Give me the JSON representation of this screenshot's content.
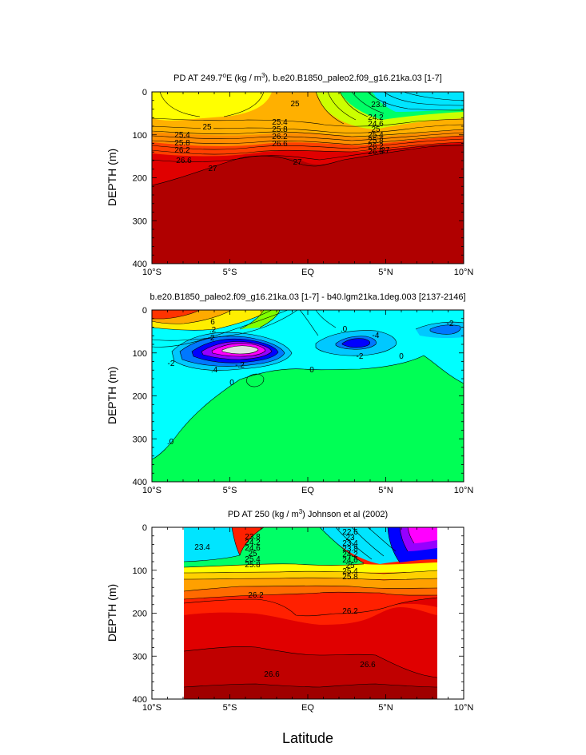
{
  "figure": {
    "xlabel": "Latitude"
  },
  "chart_data": [
    {
      "type": "heatmap",
      "title_parts": {
        "main": "PD AT 249.7",
        "sup": "o",
        "mid": "E (kg / m",
        "sup2": "3",
        "end": "), b.e20.B1850_paleo2.f09_g16.21ka.03 [1-7]"
      },
      "xlabel": "",
      "ylabel": "DEPTH (m)",
      "x_ticks": [
        "10°S",
        "5°S",
        "EQ",
        "5°N",
        "10°N"
      ],
      "x_values": [
        -10,
        -5,
        0,
        5,
        10
      ],
      "xlim": [
        -10,
        10
      ],
      "y_ticks": [
        "0",
        "100",
        "200",
        "300",
        "400"
      ],
      "ylim": [
        0,
        400
      ],
      "y_inverted": true,
      "contour_labels": [
        "25",
        "25",
        "25.4",
        "25.8",
        "26.2",
        "26.6",
        "27",
        "25.4",
        "25.8",
        "26.2",
        "26.6",
        "27",
        "23.8",
        "24.2",
        "24.6",
        "25",
        "25.4",
        "25.8",
        "26.2",
        "26.6",
        "27"
      ],
      "colors": [
        "#00e5ff",
        "#00ff66",
        "#aaff00",
        "#ffff00",
        "#ffd000",
        "#ffa000",
        "#ff6a00",
        "#ff2000",
        "#e00000",
        "#b00000"
      ]
    },
    {
      "type": "heatmap",
      "title": "b.e20.B1850_paleo2.f09_g16.21ka.03 [1-7] - b40.lgm21ka.1deg.003 [2137-2146]",
      "xlabel": "",
      "ylabel": "DEPTH (m)",
      "x_ticks": [
        "10°S",
        "5°S",
        "EQ",
        "5°N",
        "10°N"
      ],
      "x_values": [
        -10,
        -5,
        0,
        5,
        10
      ],
      "xlim": [
        -10,
        10
      ],
      "y_ticks": [
        "0",
        "100",
        "200",
        "300",
        "400"
      ],
      "ylim": [
        0,
        400
      ],
      "y_inverted": true,
      "contour_labels": [
        "6",
        ".2",
        "-2",
        ".4",
        "-.2",
        "-2",
        "0",
        "0",
        ".0",
        "-4",
        "-2",
        "0",
        "-2",
        "0",
        ".0"
      ],
      "colors": [
        "#00ff55",
        "#00ffff",
        "#00c8ff",
        "#0078ff",
        "#0000ff",
        "#9600ff",
        "#ff00ff",
        "#e0e0e0",
        "#ff3300",
        "#ffaa00",
        "#ffee00"
      ]
    },
    {
      "type": "heatmap",
      "title_parts": {
        "main": "PD AT 250 (kg / m",
        "sup": "3",
        "end": ") Johnson et al (2002)"
      },
      "xlabel": "",
      "ylabel": "DEPTH (m)",
      "x_ticks": [
        "10°S",
        "5°S",
        "EQ",
        "5°N",
        "10°N"
      ],
      "x_values": [
        -10,
        -5,
        0,
        5,
        10
      ],
      "xlim": [
        -10,
        10
      ],
      "data_xlim": [
        -8,
        8.2
      ],
      "y_ticks": [
        "0",
        "100",
        "200",
        "300",
        "400"
      ],
      "ylim": [
        0,
        400
      ],
      "y_inverted": true,
      "contour_labels": [
        "23.4",
        "23.8",
        "24.2",
        "24.6",
        "25",
        "25.4",
        "25.8",
        "26.2",
        "22.6",
        "23",
        "23.4",
        "23.8",
        "24.2",
        "24.6",
        "25",
        "25.4",
        "25.8",
        "26.2",
        "26.6",
        "26.6"
      ],
      "colors": [
        "#00e5ff",
        "#00ff66",
        "#ffff00",
        "#ffd000",
        "#ffa000",
        "#ff6a00",
        "#ff2000",
        "#e00000",
        "#c00000",
        "#a00000",
        "#0000ff",
        "#ff00ff"
      ]
    }
  ]
}
